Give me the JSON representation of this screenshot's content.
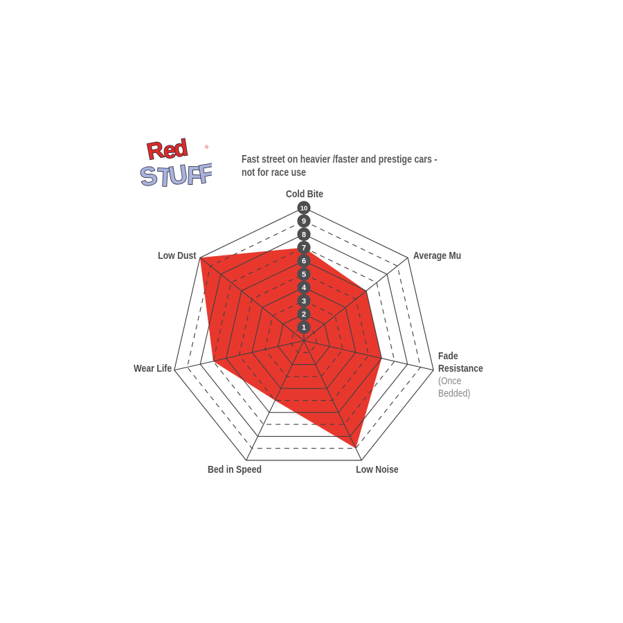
{
  "page": {
    "background": "#ffffff"
  },
  "logo": {
    "word1": "Red",
    "word2": "STUFF",
    "registered": "®",
    "word1_color": "#de2b26",
    "word2_color": "#a9b3dc",
    "outline_color": "#23233c"
  },
  "header": {
    "line1": "Fast street on heavier /faster and prestige cars -",
    "line2": "not for race use",
    "color": "#58585b"
  },
  "chart_data": {
    "type": "radar",
    "min": 0,
    "max": 10,
    "scale_ticks": [
      "1",
      "2",
      "3",
      "4",
      "5",
      "6",
      "7",
      "8",
      "9",
      "10"
    ],
    "rings": {
      "count": 10,
      "solid_levels": [
        2,
        4,
        6,
        8,
        10
      ],
      "dashed_levels": [
        1,
        3,
        5,
        7,
        9
      ]
    },
    "axes": [
      {
        "label": "Cold Bite",
        "value": 7
      },
      {
        "label": "Average Mu",
        "value": 6
      },
      {
        "label": "Fade Resistance",
        "sublabel": "(Once Bedded)",
        "value": 6
      },
      {
        "label": "Low Noise",
        "value": 9
      },
      {
        "label": "Bed in Speed",
        "value": 5
      },
      {
        "label": "Wear Life",
        "value": 7
      },
      {
        "label": "Low Dust",
        "value": 10
      }
    ],
    "series": [
      {
        "name": "RedStuff",
        "color": "#e8382d",
        "values": [
          7,
          6,
          6,
          9,
          5,
          7,
          10
        ]
      }
    ],
    "grid_color": "#414045",
    "badge_color": "#4e4e52",
    "badge_text_color": "#ffffff",
    "legend_position": "none"
  }
}
